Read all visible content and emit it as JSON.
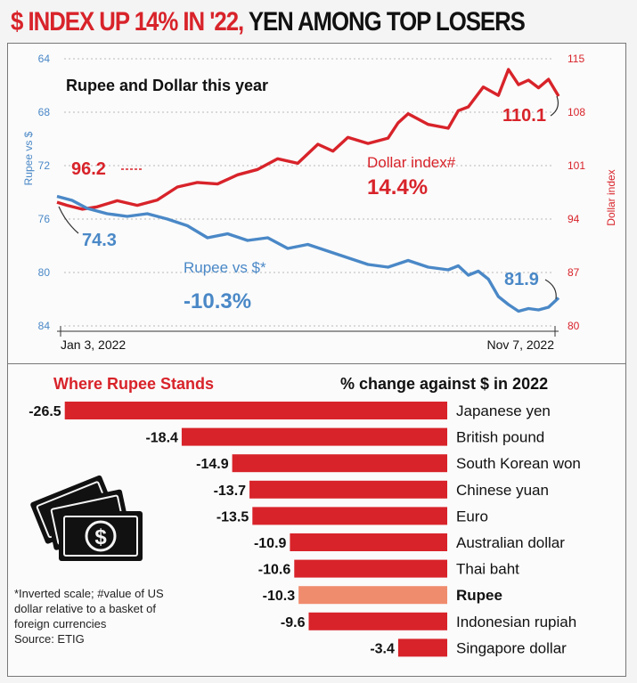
{
  "headline": {
    "part1": "$ INDEX UP 14% IN '22,",
    "part2": " YEN AMONG TOP LOSERS"
  },
  "colors": {
    "red": "#d8232a",
    "blue": "#4a88c7",
    "highlight": "#f08c6e",
    "grid": "#b8b8b8"
  },
  "chart_data": [
    {
      "type": "line",
      "title": "Rupee and Dollar this year",
      "x_labels": [
        "Jan 3, 2022",
        "Nov 7, 2022"
      ],
      "left_axis": {
        "label": "Rupee vs $",
        "ticks": [
          64,
          68,
          72,
          76,
          80,
          84
        ],
        "ylim": [
          84,
          64
        ],
        "inverted": true
      },
      "right_axis": {
        "label": "Dollar index",
        "ticks": [
          115,
          108,
          101,
          94,
          87,
          80
        ],
        "ylim": [
          80,
          115
        ]
      },
      "series": [
        {
          "name": "Dollar index#",
          "axis": "right",
          "color": "#d8232a",
          "change_label": "14.4%",
          "start_label": "96.2",
          "end_label": "110.1",
          "start_value": 96.2,
          "end_value": 110.1,
          "x": [
            0,
            0.02,
            0.05,
            0.08,
            0.12,
            0.16,
            0.2,
            0.24,
            0.28,
            0.32,
            0.36,
            0.4,
            0.44,
            0.48,
            0.52,
            0.55,
            0.58,
            0.62,
            0.66,
            0.68,
            0.7,
            0.74,
            0.78,
            0.8,
            0.82,
            0.85,
            0.88,
            0.9,
            0.92,
            0.94,
            0.96,
            0.98,
            1.0
          ],
          "values": [
            96.2,
            95.8,
            95.3,
            95.6,
            96.4,
            95.8,
            96.5,
            98.2,
            98.8,
            98.6,
            99.8,
            100.5,
            101.9,
            101.3,
            103.8,
            102.9,
            104.7,
            103.9,
            104.6,
            106.6,
            107.8,
            106.4,
            105.9,
            108.2,
            108.7,
            111.3,
            110.2,
            113.6,
            111.6,
            112.2,
            111.2,
            112.3,
            110.1
          ]
        },
        {
          "name": "Rupee vs $*",
          "axis": "left",
          "color": "#4a88c7",
          "change_label": "-10.3%",
          "start_label": "74.3",
          "end_label": "81.9",
          "start_value": 74.3,
          "end_value": 81.9,
          "x": [
            0,
            0.03,
            0.06,
            0.1,
            0.14,
            0.18,
            0.22,
            0.26,
            0.3,
            0.34,
            0.38,
            0.42,
            0.46,
            0.5,
            0.54,
            0.58,
            0.62,
            0.66,
            0.7,
            0.74,
            0.78,
            0.8,
            0.82,
            0.84,
            0.86,
            0.88,
            0.9,
            0.92,
            0.94,
            0.96,
            0.98,
            1.0
          ],
          "values": [
            74.3,
            74.6,
            75.2,
            75.6,
            75.8,
            75.6,
            76.0,
            76.5,
            77.4,
            77.1,
            77.6,
            77.4,
            78.2,
            77.9,
            78.4,
            78.9,
            79.4,
            79.6,
            79.1,
            79.6,
            79.8,
            79.5,
            80.2,
            79.9,
            80.5,
            81.8,
            82.4,
            82.9,
            82.7,
            82.8,
            82.6,
            81.9
          ]
        }
      ]
    },
    {
      "type": "bar",
      "title": "Where Rupee Stands",
      "subtitle": "% change against $ in 2022",
      "categories": [
        "Japanese yen",
        "British pound",
        "South Korean won",
        "Chinese yuan",
        "Euro",
        "Australian dollar",
        "Thai baht",
        "Rupee",
        "Indonesian rupiah",
        "Singapore dollar"
      ],
      "values": [
        -26.5,
        -18.4,
        -14.9,
        -13.7,
        -13.5,
        -10.9,
        -10.6,
        -10.3,
        -9.6,
        -3.4
      ],
      "value_labels": [
        "-26.5",
        "-18.4",
        "-14.9",
        "-13.7",
        "-13.5",
        "-10.9",
        "-10.6",
        "-10.3",
        "-9.6",
        "-3.4"
      ],
      "highlight": "Rupee",
      "bar_color": "#d8232a",
      "highlight_color": "#f08c6e"
    }
  ],
  "footnote": {
    "line1": "*Inverted scale; #value of US",
    "line2": "dollar relative to a basket of",
    "line3": "foreign currencies",
    "line4": "Source: ETIG"
  }
}
